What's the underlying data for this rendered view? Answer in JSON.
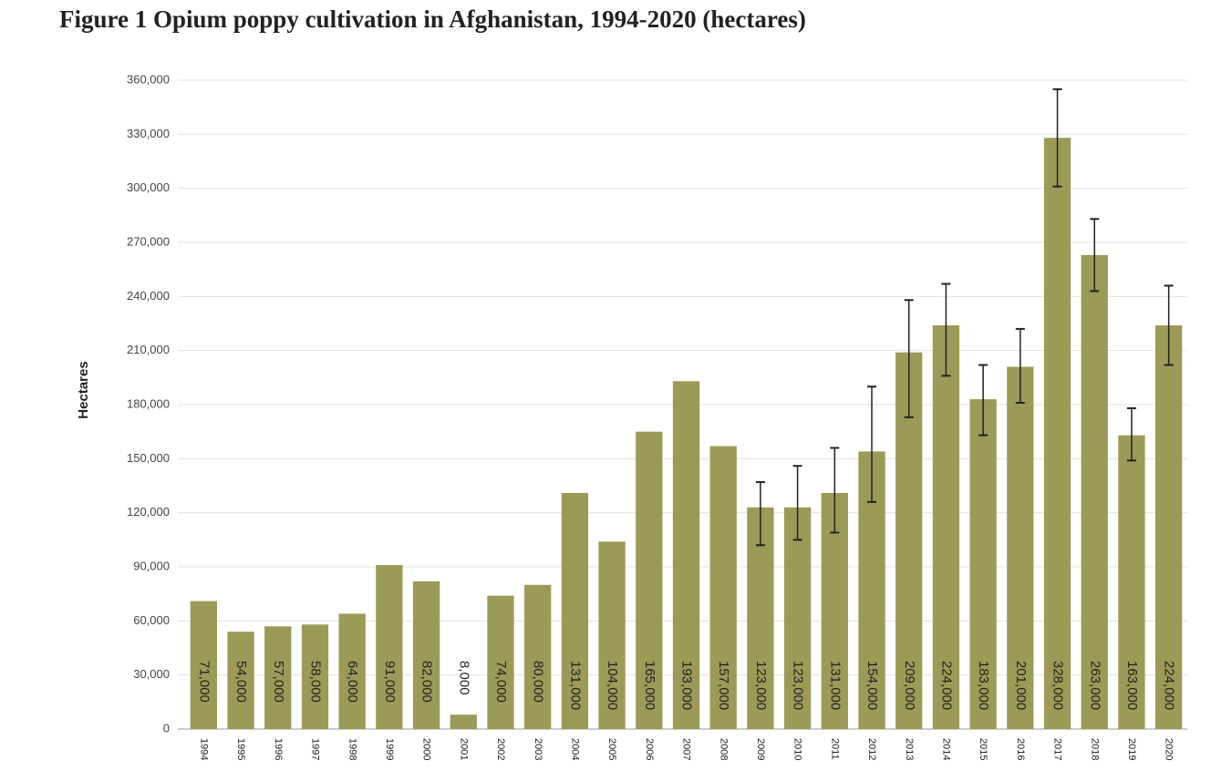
{
  "chart_data": {
    "type": "bar",
    "title": "Figure 1 Opium poppy cultivation in Afghanistan, 1994-2020 (hectares)",
    "y_label": "Hectares",
    "categories": [
      "1994",
      "1995",
      "1996",
      "1997",
      "1998",
      "1999",
      "2000",
      "2001",
      "2002",
      "2003",
      "2004",
      "2005",
      "2006",
      "2007",
      "2008",
      "2009",
      "2010",
      "2011",
      "2012",
      "2013",
      "2014",
      "2015",
      "2016",
      "2017",
      "2018",
      "2019",
      "2020"
    ],
    "values": [
      71000,
      54000,
      57000,
      58000,
      64000,
      91000,
      82000,
      8000,
      74000,
      80000,
      131000,
      104000,
      165000,
      193000,
      157000,
      123000,
      123000,
      131000,
      154000,
      209000,
      224000,
      183000,
      201000,
      328000,
      263000,
      163000,
      224000
    ],
    "value_labels": [
      "71,000",
      "54,000",
      "57,000",
      "58,000",
      "64,000",
      "91,000",
      "82,000",
      "8,000",
      "74,000",
      "80,000",
      "131,000",
      "104,000",
      "165,000",
      "193,000",
      "157,000",
      "123,000",
      "123,000",
      "131,000",
      "154,000",
      "209,000",
      "224,000",
      "183,000",
      "201,000",
      "328,000",
      "263,000",
      "163,000",
      "224,000"
    ],
    "error_low": [
      null,
      null,
      null,
      null,
      null,
      null,
      null,
      null,
      null,
      null,
      null,
      null,
      null,
      null,
      null,
      102000,
      105000,
      109000,
      126000,
      173000,
      196000,
      163000,
      181000,
      301000,
      243000,
      149000,
      202000
    ],
    "error_high": [
      null,
      null,
      null,
      null,
      null,
      null,
      null,
      null,
      null,
      null,
      null,
      null,
      null,
      null,
      null,
      137000,
      146000,
      156000,
      190000,
      238000,
      247000,
      202000,
      222000,
      355000,
      283000,
      178000,
      246000
    ],
    "color": "#9b9b57",
    "ylim": [
      0,
      360000
    ],
    "yticks": [
      0,
      {
        "value": 30000,
        "label": "30,000"
      },
      {
        "value": 60000,
        "label": "60,000"
      },
      {
        "value": 90000,
        "label": "90,000"
      },
      {
        "value": 120000,
        "label": "120,000"
      },
      {
        "value": 150000,
        "label": "150,000"
      },
      {
        "value": 180000,
        "label": "180,000"
      },
      {
        "value": 210000,
        "label": "210,000"
      },
      {
        "value": 240000,
        "label": "240,000"
      },
      {
        "value": 270000,
        "label": "270,000"
      },
      {
        "value": 300000,
        "label": "300,000"
      },
      {
        "value": 330000,
        "label": "330,000"
      },
      {
        "value": 360000,
        "label": "360,000"
      }
    ],
    "grid": true
  }
}
